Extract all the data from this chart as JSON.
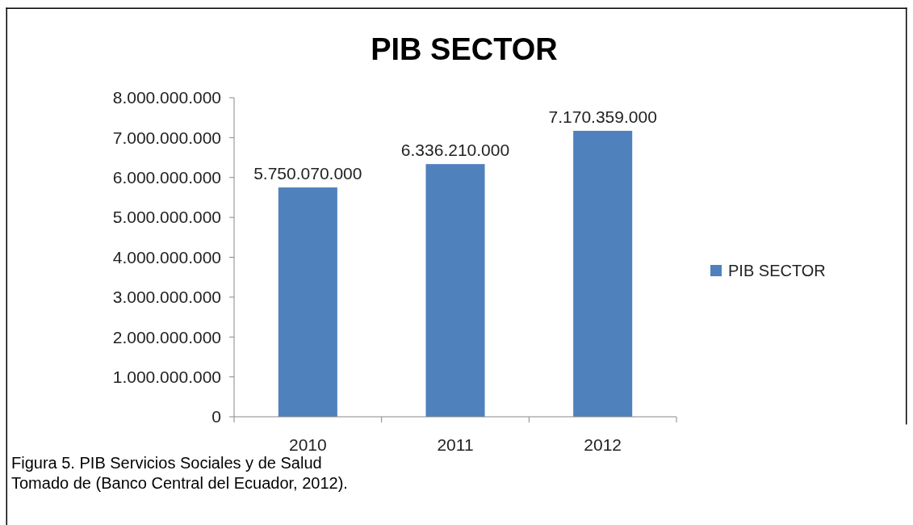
{
  "chart_data": {
    "type": "bar",
    "title": "PIB SECTOR",
    "categories": [
      "2010",
      "2011",
      "2012"
    ],
    "series": [
      {
        "name": "PIB SECTOR",
        "color": "#4f81bd",
        "values": [
          5750070000,
          6336210000,
          7170359000
        ],
        "value_labels": [
          "5.750.070.000",
          "6.336.210.000",
          "7.170.359.000"
        ]
      }
    ],
    "ylim": [
      0,
      8000000000
    ],
    "yticks": [
      0,
      {
        "value": 1000000000,
        "label": "1.000.000.000"
      },
      {
        "value": 2000000000,
        "label": "2.000.000.000"
      },
      {
        "value": 3000000000,
        "label": "3.000.000.000"
      },
      {
        "value": 4000000000,
        "label": "4.000.000.000"
      },
      {
        "value": 5000000000,
        "label": "5.000.000.000"
      },
      {
        "value": 6000000000,
        "label": "6.000.000.000"
      },
      {
        "value": 7000000000,
        "label": "7.000.000.000"
      },
      {
        "value": 8000000000,
        "label": "8.000.000.000"
      }
    ],
    "legend": "right",
    "grid": false,
    "annotations": [
      "Figura 5.  PIB Servicios Sociales y de Salud",
      "Tomado de (Banco Central del Ecuador, 2012)."
    ]
  }
}
